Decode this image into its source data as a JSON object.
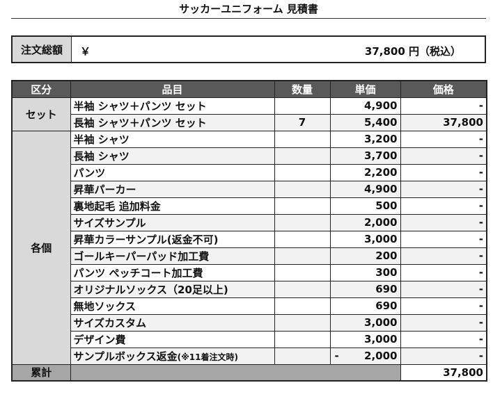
{
  "title": "サッカーユニフォーム 見積書",
  "total": {
    "label": "注文総額",
    "yen": "￥",
    "amount": "37,800 円（税込）"
  },
  "table": {
    "headers": [
      "区分",
      "品目",
      "数量",
      "単価",
      "価格"
    ],
    "groups": [
      {
        "category": "セット",
        "rows": [
          {
            "item": "半袖 シャツ＋パンツ セット",
            "qty": "",
            "unit": "4,900",
            "price": "-"
          },
          {
            "item": "長袖 シャツ＋パンツ セット",
            "qty": "7",
            "unit": "5,400",
            "price": "37,800"
          }
        ]
      },
      {
        "category": "各個",
        "rows": [
          {
            "item": "半袖 シャツ",
            "qty": "",
            "unit": "3,200",
            "price": "-"
          },
          {
            "item": "長袖 シャツ",
            "qty": "",
            "unit": "3,700",
            "price": "-"
          },
          {
            "item": "パンツ",
            "qty": "",
            "unit": "2,200",
            "price": "-"
          },
          {
            "item": "昇華パーカー",
            "qty": "",
            "unit": "4,900",
            "price": "-"
          },
          {
            "item": "裏地起毛 追加料金",
            "qty": "",
            "unit": "500",
            "price": "-"
          },
          {
            "item": "サイズサンプル",
            "qty": "",
            "unit": "2,000",
            "price": "-"
          },
          {
            "item": "昇華カラーサンプル(返金不可)",
            "qty": "",
            "unit": "3,000",
            "price": "-"
          },
          {
            "item": "ゴールキーパーパッド加工費",
            "qty": "",
            "unit": "200",
            "price": "-"
          },
          {
            "item": "パンツ ぺッチコート加工費",
            "qty": "",
            "unit": "300",
            "price": "-"
          },
          {
            "item": "オリジナルソックス（20足以上)",
            "qty": "",
            "unit": "690",
            "price": "-"
          },
          {
            "item": "無地ソックス",
            "qty": "",
            "unit": "690",
            "price": "-"
          },
          {
            "item": "サイズカスタム",
            "qty": "",
            "unit": "3,000",
            "price": "-"
          },
          {
            "item": "デザイン費",
            "qty": "",
            "unit": "3,000",
            "price": "-"
          },
          {
            "item": "サンプルボックス返金",
            "item_note": "(※11着注文時)",
            "qty": "",
            "unit_sign": "-",
            "unit": "2,000",
            "price": "-"
          }
        ]
      }
    ],
    "summary": {
      "label": "累計",
      "price": "37,800"
    }
  }
}
